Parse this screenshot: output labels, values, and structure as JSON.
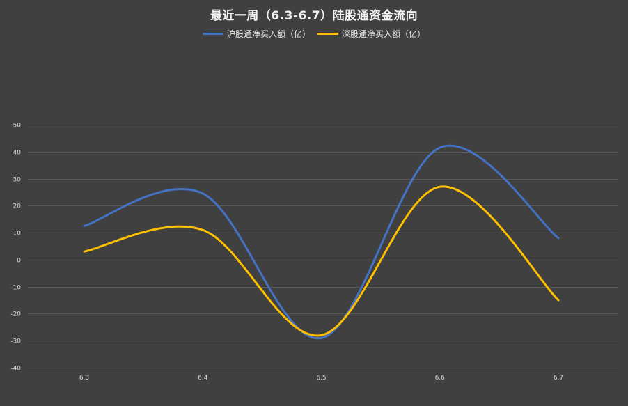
{
  "chart_data": {
    "type": "line",
    "title": "最近一周（6.3-6.7）陆股通资金流向",
    "categories": [
      "6.3",
      "6.4",
      "6.5",
      "6.6",
      "6.7"
    ],
    "series": [
      {
        "name": "沪股通净买入额（亿）",
        "color": "#4472C4",
        "values": [
          12.5,
          24.5,
          -29,
          41.5,
          8
        ]
      },
      {
        "name": "深股通净买入额（亿）",
        "color": "#FFC000",
        "values": [
          3,
          11,
          -28,
          27,
          -15
        ]
      }
    ],
    "yticks": [
      "-40",
      "-30",
      "-20",
      "-10",
      "0",
      "10",
      "20",
      "30",
      "40",
      "50"
    ],
    "ylim": [
      -40,
      50
    ],
    "grid": true,
    "legend": "top-center",
    "smooth": true,
    "colors": {
      "background": "#404040",
      "gridline": "#595959",
      "text": "#d9d9d9"
    }
  }
}
